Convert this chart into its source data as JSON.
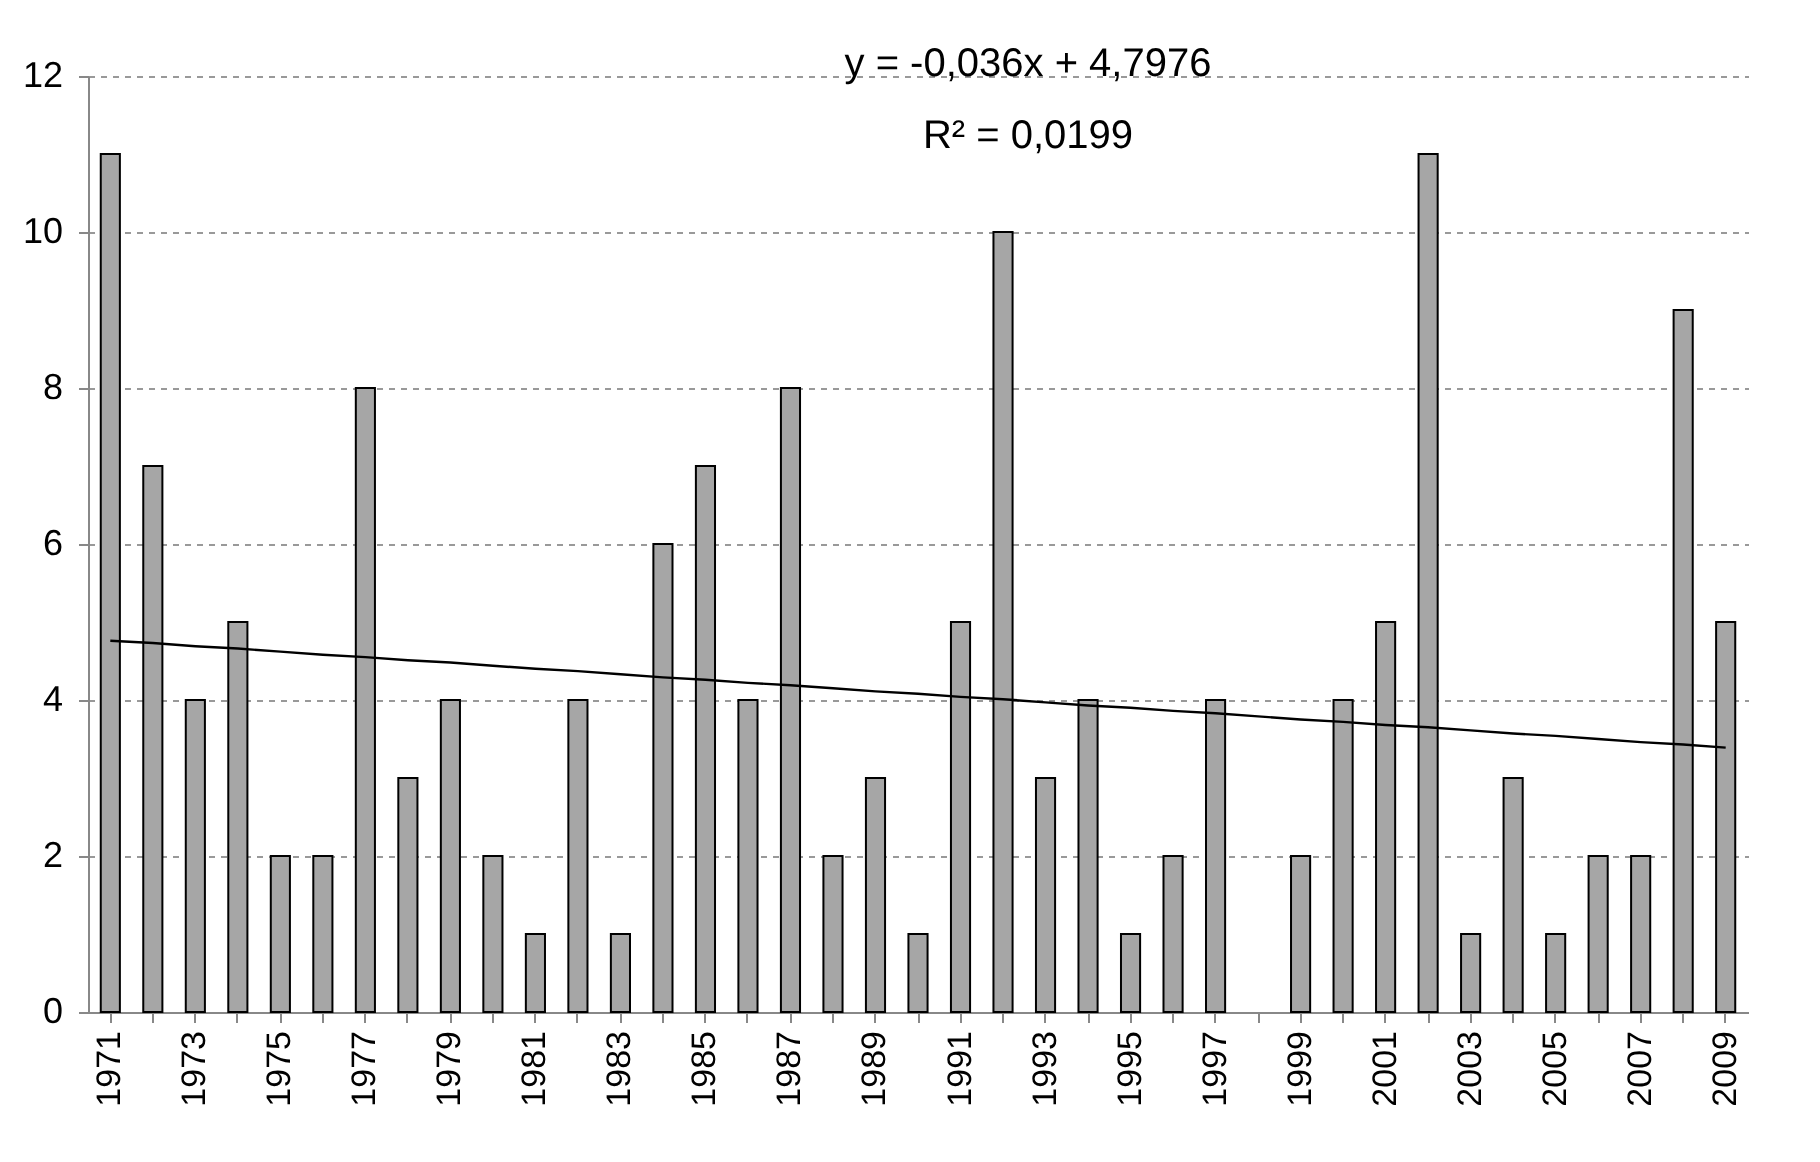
{
  "chart_data": {
    "type": "bar",
    "categories": [
      "1971",
      null,
      "1973",
      null,
      "1975",
      null,
      "1977",
      null,
      "1979",
      null,
      "1981",
      null,
      "1983",
      null,
      "1985",
      null,
      "1987",
      null,
      "1989",
      null,
      "1991",
      null,
      "1993",
      null,
      "1995",
      null,
      "1997",
      null,
      "1999",
      null,
      "2001",
      null,
      "2003",
      null,
      "2005",
      null,
      "2007",
      null,
      "2009"
    ],
    "series": [
      {
        "color": "#a6a6a6",
        "values": [
          11,
          7,
          4,
          5,
          2,
          2,
          8,
          3,
          4,
          2,
          1,
          4,
          1,
          6,
          7,
          4,
          8,
          2,
          3,
          1,
          5,
          10,
          3,
          4,
          1,
          2,
          4,
          0,
          2,
          4,
          5,
          11,
          1,
          3,
          1,
          2,
          2,
          9,
          5
        ]
      },
      {
        "type": "line",
        "color": "#000000",
        "values": [
          4.76,
          4.73,
          4.69,
          4.66,
          4.62,
          4.58,
          4.55,
          4.51,
          4.48,
          4.44,
          4.4,
          4.37,
          4.33,
          4.29,
          4.26,
          4.22,
          4.19,
          4.15,
          4.11,
          4.08,
          4.04,
          4.01,
          3.97,
          3.93,
          3.9,
          3.86,
          3.83,
          3.79,
          3.75,
          3.72,
          3.68,
          3.65,
          3.61,
          3.57,
          3.54,
          3.5,
          3.46,
          3.43,
          3.39
        ]
      }
    ],
    "ylim": [
      0,
      12
    ],
    "yticks": [
      0,
      2,
      4,
      6,
      8,
      10,
      12
    ],
    "grid": "y",
    "annotations": [
      "y = -0,036x + 4,7976",
      "R² = 0,0199"
    ]
  }
}
